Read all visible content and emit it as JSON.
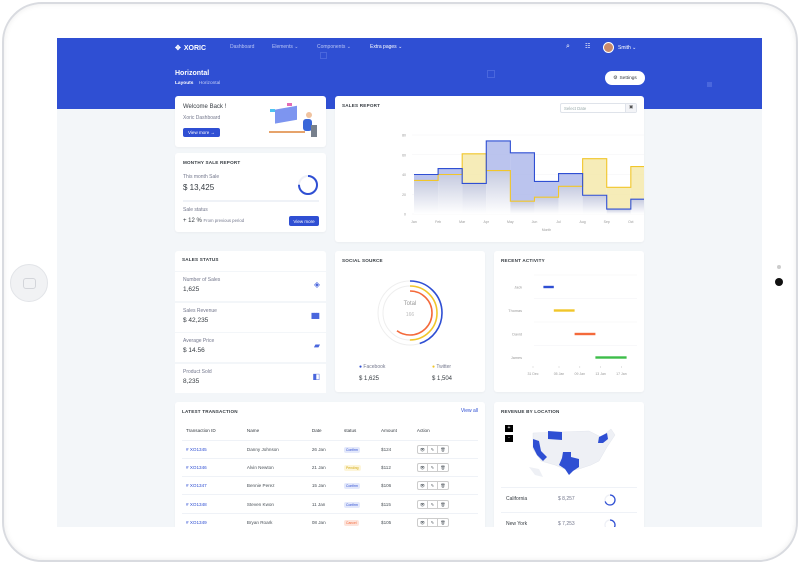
{
  "header": {
    "brand": "XORIC",
    "nav": [
      "Dashboard",
      "Elements",
      "Components",
      "Extra pages"
    ],
    "user": "Smith",
    "page_title": "Horizontal",
    "breadcrumb": [
      "Layouts",
      "Horizontal"
    ],
    "settings": "Settings"
  },
  "welcome": {
    "title": "Welcome Back !",
    "subtitle": "Xoric Dashboard",
    "button": "View more"
  },
  "monthly": {
    "title": "MONTHY SALE REPORT",
    "this_month_label": "This month Sale",
    "this_month_value": "$ 13,425",
    "progress": 0.75,
    "status_label": "Sale status",
    "change": "+ 12 %",
    "change_note": "From previous period",
    "button": "View more"
  },
  "sales_report": {
    "title": "SALES REPORT",
    "date_placeholder": "Select Date"
  },
  "chart_data": {
    "type": "area",
    "title": "SALES REPORT",
    "xlabel": "Month",
    "ylabel": "",
    "ylim": [
      0,
      80
    ],
    "yticks": [
      "0",
      "20",
      "40",
      "60",
      "80"
    ],
    "categories": [
      "Jan",
      "Feb",
      "Mar",
      "Apr",
      "May",
      "Jun",
      "Jul",
      "Aug",
      "Sep",
      "Oct",
      "Nov",
      "Dec"
    ],
    "step": true,
    "grid": true,
    "series": [
      {
        "values": [
          40,
          46,
          31,
          74,
          62,
          33,
          41,
          19,
          5,
          15,
          26,
          38
        ],
        "color": "#2f4fd3"
      },
      {
        "values": [
          34,
          40,
          61,
          44,
          13,
          17,
          28,
          56,
          27,
          48,
          34,
          34
        ],
        "color": "#f1c62a"
      }
    ]
  },
  "sales_status": {
    "title": "SALES STATUS",
    "items": [
      {
        "label": "Number of Sales",
        "value": "1,625",
        "icon": "layers-icon"
      },
      {
        "label": "Sales Revenue",
        "value": "$ 42,235",
        "icon": "bar-chart-icon"
      },
      {
        "label": "Average Price",
        "value": "$ 14.56",
        "icon": "ticket-icon"
      },
      {
        "label": "Product Sold",
        "value": "8,235",
        "icon": "box-icon"
      }
    ]
  },
  "social": {
    "title": "SOCIAL SOURCE",
    "total_label": "Total",
    "total": "166",
    "rings": [
      {
        "fraction": 0.45,
        "color": "#2f4fd3"
      },
      {
        "fraction": 0.5,
        "color": "#f1c62a"
      },
      {
        "fraction": 0.6,
        "color": "#f46a3b"
      }
    ],
    "legend": [
      {
        "name": "Facebook",
        "value": "$ 1,625",
        "color": "#2f4fd3"
      },
      {
        "name": "Twitter",
        "value": "$ 1,504",
        "color": "#f1c62a"
      }
    ]
  },
  "activity": {
    "title": "RECENT ACTIVITY",
    "ticks": [
      "31 Dec",
      "05 Jan",
      "09 Jan",
      "13 Jan",
      "17 Jan"
    ],
    "rows": [
      {
        "name": "Jack",
        "start": "02 Jan",
        "end": "04 Jan",
        "color": "#2f4fd3"
      },
      {
        "name": "Thomas",
        "start": "04 Jan",
        "end": "08 Jan",
        "color": "#f1c62a"
      },
      {
        "name": "David",
        "start": "08 Jan",
        "end": "12 Jan",
        "color": "#f46a3b"
      },
      {
        "name": "James",
        "start": "12 Jan",
        "end": "18 Jan",
        "color": "#3dbd49"
      }
    ]
  },
  "transactions": {
    "title": "LATEST TRANSACTION",
    "view_all": "View all",
    "columns": [
      "Transaction ID",
      "Name",
      "Date",
      "status",
      "Amount",
      "Action"
    ],
    "rows": [
      {
        "id": "# XO1345",
        "name": "Danny Johnson",
        "date": "26 Jan",
        "status": "Confirm",
        "amount": "$124"
      },
      {
        "id": "# XO1346",
        "name": "Alvin Newton",
        "date": "21 Jan",
        "status": "Pending",
        "amount": "$112"
      },
      {
        "id": "# XO1347",
        "name": "Bennie Perez",
        "date": "15 Jan",
        "status": "Confirm",
        "amount": "$106"
      },
      {
        "id": "# XO1348",
        "name": "Steven Kwon",
        "date": "11 Jan",
        "status": "Confirm",
        "amount": "$115"
      },
      {
        "id": "# XO1349",
        "name": "Bryan Roark",
        "date": "08 Jan",
        "status": "Cancel",
        "amount": "$105"
      }
    ]
  },
  "location": {
    "title": "REVENUE BY LOCATION",
    "zoom_in": "+",
    "zoom_out": "-",
    "rows": [
      {
        "state": "California",
        "value": "$ 8,257",
        "progress": 0.7
      },
      {
        "state": "New York",
        "value": "$ 7,253",
        "progress": 0.4
      }
    ]
  }
}
